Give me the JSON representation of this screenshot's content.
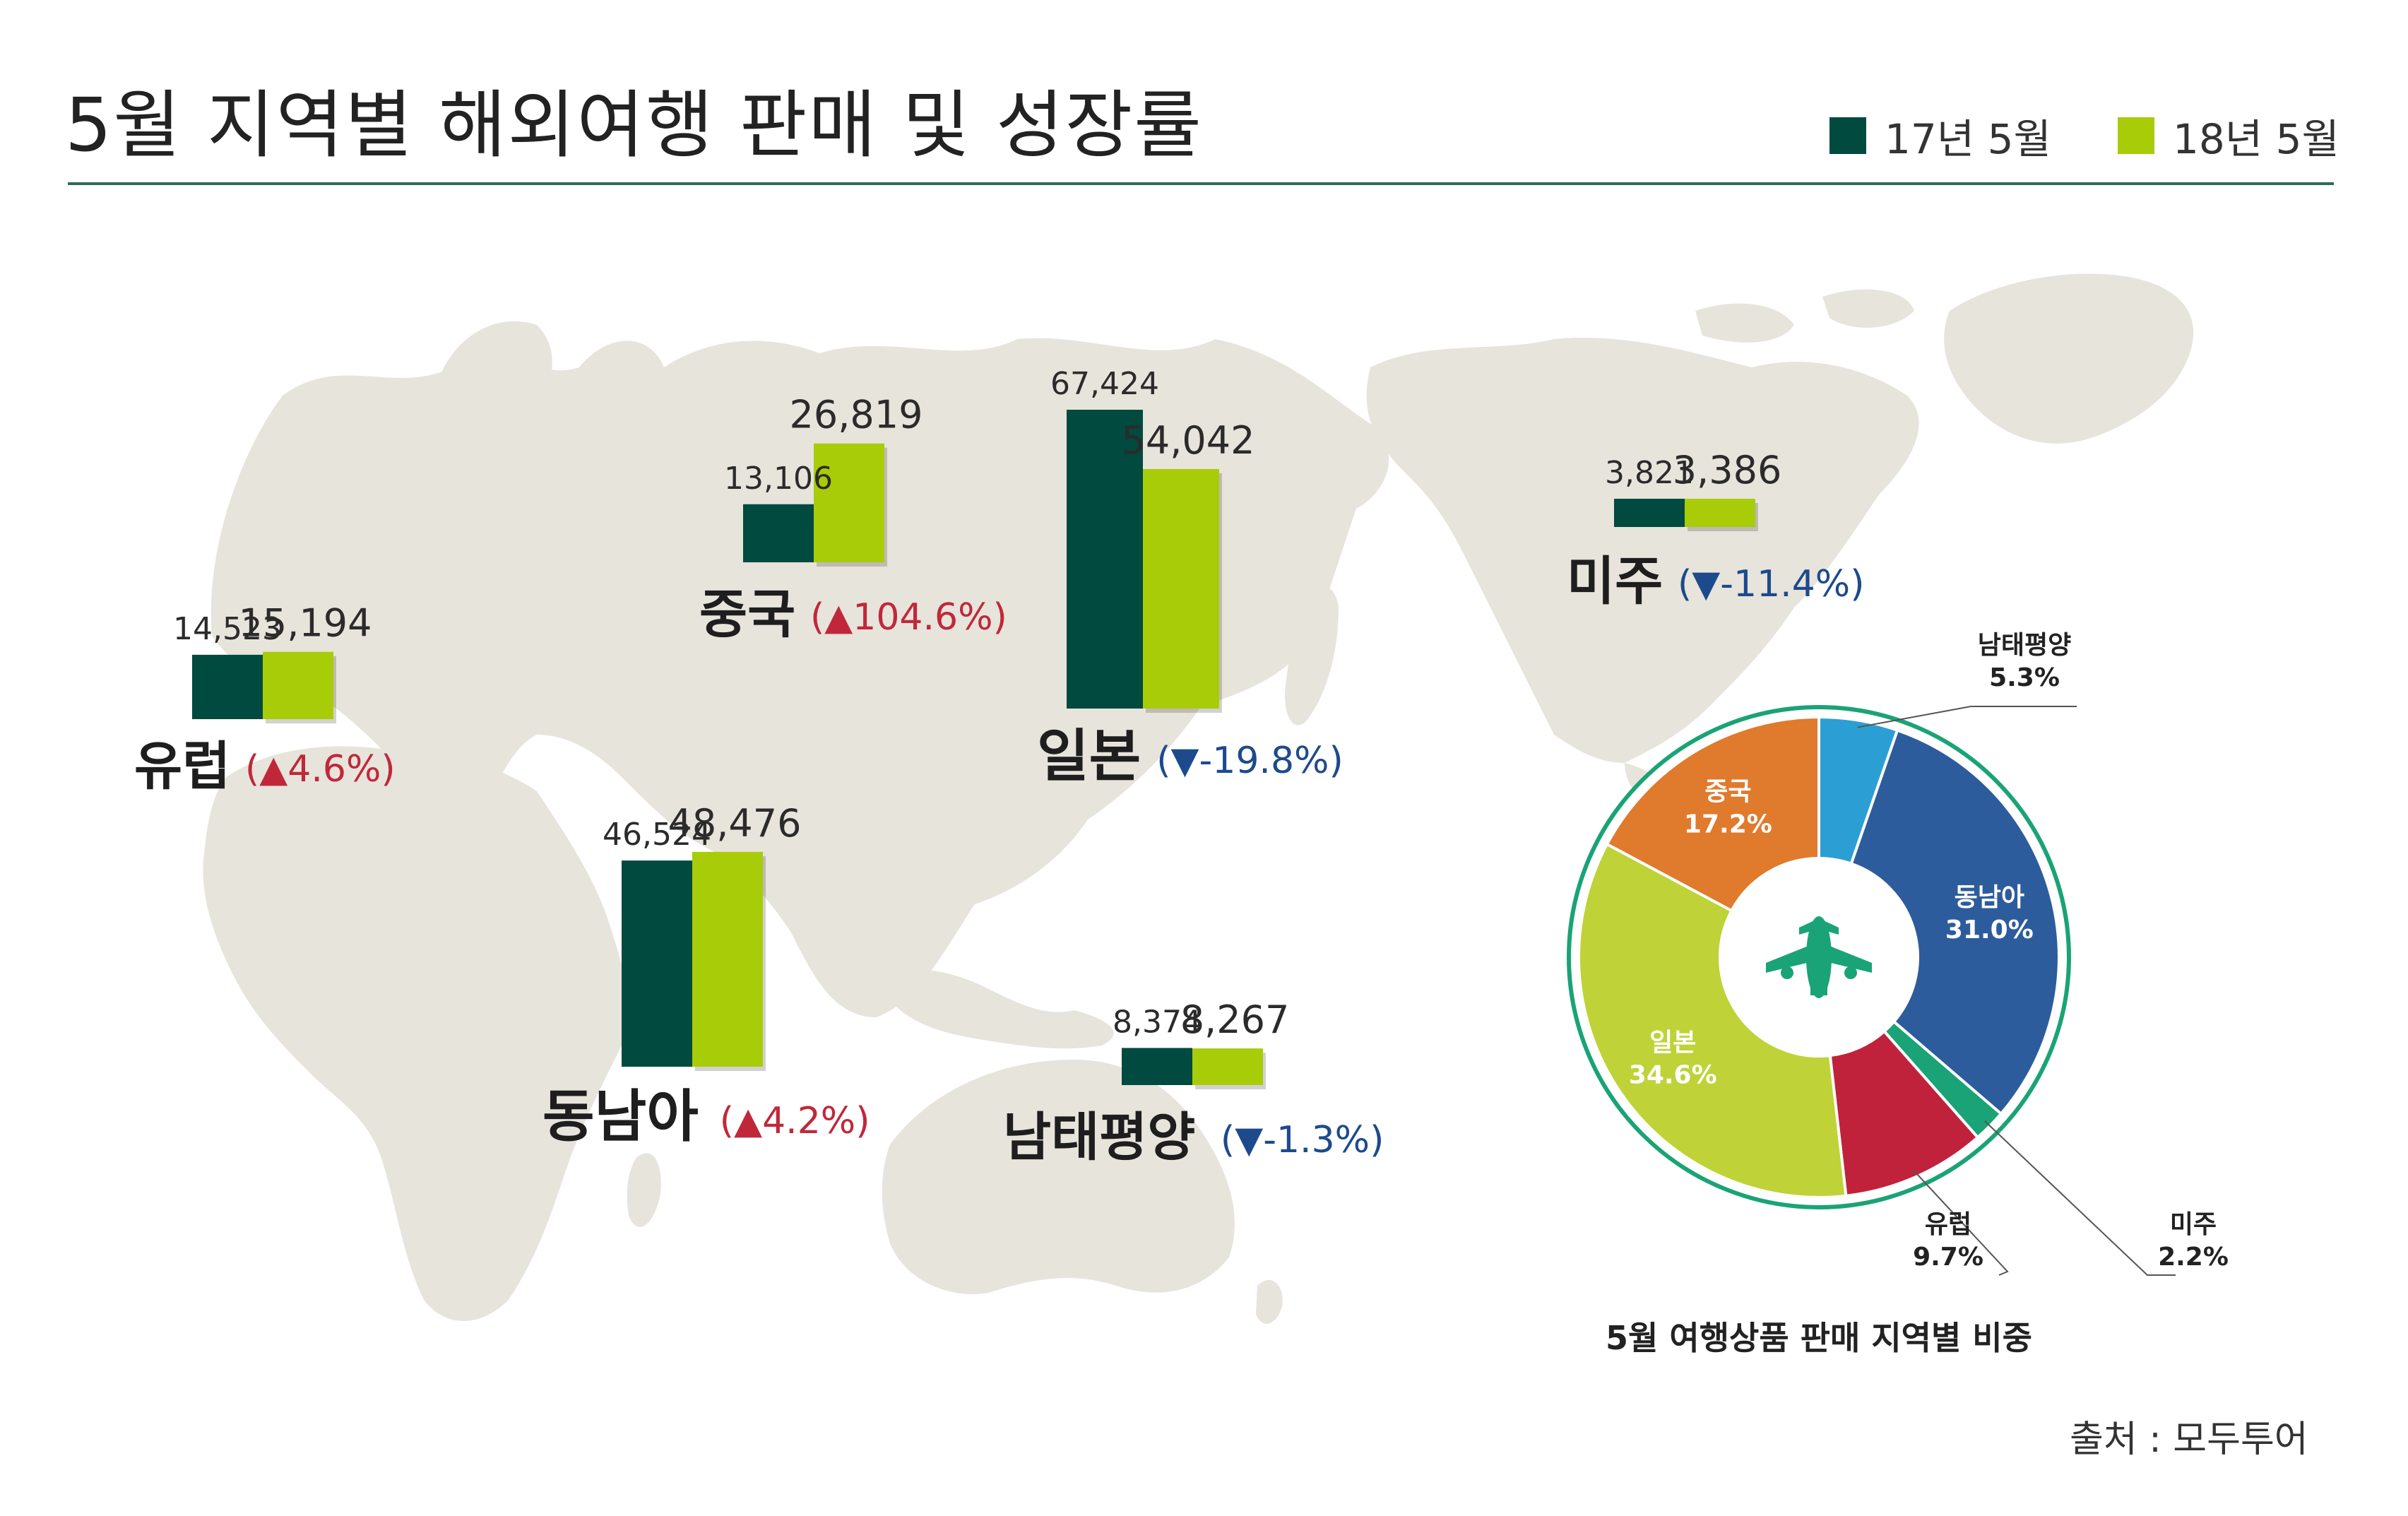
{
  "page": {
    "title": "5월 지역별 해외여행 판매 및 성장률",
    "source": "출처 : 모두투어"
  },
  "colors": {
    "y2017": "#004a3f",
    "y2018": "#a8cc08",
    "up": "#c0283a",
    "down": "#1d4a8c",
    "map": "#e7e4dc",
    "rule": "#2e6b55",
    "pie_ring": "#1aa376"
  },
  "legend": {
    "y2017": "17년 5월",
    "y2018": "18년 5월"
  },
  "chart_data": [
    {
      "type": "bar",
      "title": "5월 지역별 해외여행 판매 및 성장률",
      "series_names": [
        "17년 5월",
        "18년 5월"
      ],
      "regions": [
        {
          "key": "europe",
          "name": "유럽",
          "v2017": 14523,
          "v2018": 15194,
          "v2017_label": "14,523",
          "v2018_label": "15,194",
          "growth_arrow": "▲",
          "growth": "4.6%",
          "dir": "up"
        },
        {
          "key": "china",
          "name": "중국",
          "v2017": 13106,
          "v2018": 26819,
          "v2017_label": "13,106",
          "v2018_label": "26,819",
          "growth_arrow": "▲",
          "growth": "104.6%",
          "dir": "up"
        },
        {
          "key": "japan",
          "name": "일본",
          "v2017": 67424,
          "v2018": 54042,
          "v2017_label": "67,424",
          "v2018_label": "54,042",
          "growth_arrow": "▼",
          "growth": "-19.8%",
          "dir": "down"
        },
        {
          "key": "americas",
          "name": "미주",
          "v2017": 3821,
          "v2018": 3386,
          "v2017_label": "3,821",
          "v2018_label": "3,386",
          "growth_arrow": "▼",
          "growth": "-11.4%",
          "dir": "down"
        },
        {
          "key": "sea",
          "name": "동남아",
          "v2017": 46524,
          "v2018": 48476,
          "v2017_label": "46,524",
          "v2018_label": "48,476",
          "growth_arrow": "▲",
          "growth": "4.2%",
          "dir": "up"
        },
        {
          "key": "pacific",
          "name": "남태평양",
          "v2017": 8374,
          "v2018": 8267,
          "v2017_label": "8,374",
          "v2018_label": "8,267",
          "growth_arrow": "▼",
          "growth": "-1.3%",
          "dir": "down"
        }
      ]
    },
    {
      "type": "pie",
      "title": "5월 여행상품 판매 지역별 비중",
      "slices": [
        {
          "name": "남태평양",
          "value": 5.3,
          "label": "5.3%",
          "color": "#2b9fd3"
        },
        {
          "name": "동남아",
          "value": 31.0,
          "label": "31.0%",
          "color": "#2d5c9c"
        },
        {
          "name": "미주",
          "value": 2.2,
          "label": "2.2%",
          "color": "#1aa376"
        },
        {
          "name": "유럽",
          "value": 9.7,
          "label": "9.7%",
          "color": "#c0223b"
        },
        {
          "name": "일본",
          "value": 34.6,
          "label": "34.6%",
          "color": "#bfd237"
        },
        {
          "name": "중국",
          "value": 17.2,
          "label": "17.2%",
          "color": "#e07a2d"
        }
      ]
    }
  ]
}
